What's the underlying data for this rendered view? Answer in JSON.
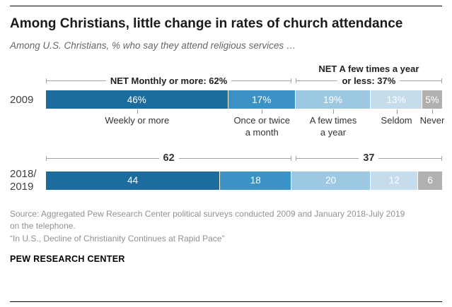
{
  "header": {
    "title": "Among Christians, little change in rates of church attendance",
    "subtitle": "Among U.S. Christians, % who say they attend religious services …"
  },
  "chart_data": {
    "type": "bar",
    "stacked": true,
    "orientation": "horizontal",
    "categories": [
      "Weekly or more",
      "Once or twice a month",
      "A few times a year",
      "Seldom",
      "Never"
    ],
    "category_label_lines": [
      [
        "Weekly or more"
      ],
      [
        "Once or twice",
        "a month"
      ],
      [
        "A few times",
        "a year"
      ],
      [
        "Seldom"
      ],
      [
        "Never"
      ]
    ],
    "colors": [
      "#1d6c9e",
      "#3a93c4",
      "#9dc8e1",
      "#c5dcec",
      "#b0b0b0"
    ],
    "rows": [
      {
        "label": "2009",
        "label_lines": [
          "2009"
        ],
        "values": [
          46,
          17,
          19,
          13,
          5
        ],
        "value_labels": [
          "46%",
          "17%",
          "19%",
          "13%",
          "5%"
        ]
      },
      {
        "label": "2018/2019",
        "label_lines": [
          "2018/",
          "2019"
        ],
        "values": [
          44,
          18,
          20,
          12,
          6
        ],
        "value_labels": [
          "44",
          "18",
          "20",
          "12",
          "6"
        ]
      }
    ],
    "nets_top": [
      {
        "lines": [
          "NET Monthly or more: 62%"
        ],
        "start": 0,
        "span": 62
      },
      {
        "lines": [
          "NET A few times a year",
          "or less: 37%"
        ],
        "start": 63,
        "span": 37
      }
    ],
    "nets_middle": [
      {
        "lines": [
          "62"
        ],
        "start": 0,
        "span": 62
      },
      {
        "lines": [
          "37"
        ],
        "start": 63,
        "span": 37
      }
    ],
    "xlim": [
      0,
      100
    ],
    "legend": "none",
    "grid": false
  },
  "footer": {
    "source": "Source: Aggregated Pew Research Center political surveys conducted 2009 and January 2018-July 2019 on the telephone.",
    "quote": "“In U.S., Decline of Christianity Continues at Rapid Pace”",
    "brand": "PEW RESEARCH CENTER"
  }
}
